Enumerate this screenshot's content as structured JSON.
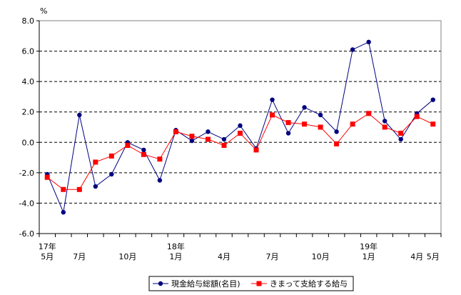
{
  "chart_data": {
    "type": "line",
    "title": "",
    "xlabel": "",
    "ylabel": "",
    "y_unit": "%",
    "ylim": [
      -6.0,
      8.0
    ],
    "y_ticks": [
      "8.0",
      "6.0",
      "4.0",
      "2.0",
      "0.0",
      "-2.0",
      "-4.0",
      "-6.0"
    ],
    "y_tick_values": [
      8,
      6,
      4,
      2,
      0,
      -2,
      -4,
      -6
    ],
    "grid": true,
    "legend_position": "bottom",
    "x_ticks": [
      {
        "index": 0,
        "year": "17年",
        "month": "5月"
      },
      {
        "index": 2,
        "year": "",
        "month": "7月"
      },
      {
        "index": 5,
        "year": "",
        "month": "10月"
      },
      {
        "index": 8,
        "year": "18年",
        "month": "1月"
      },
      {
        "index": 11,
        "year": "",
        "month": "4月"
      },
      {
        "index": 14,
        "year": "",
        "month": "7月"
      },
      {
        "index": 17,
        "year": "",
        "month": "10月"
      },
      {
        "index": 20,
        "year": "19年",
        "month": "1月"
      },
      {
        "index": 23,
        "year": "",
        "month": "4月"
      },
      {
        "index": 24,
        "year": "",
        "month": "5月"
      }
    ],
    "series": [
      {
        "name": "現金給与総額(名目)",
        "color": "#000080",
        "marker": "circle",
        "values": [
          -2.1,
          -4.6,
          1.8,
          -2.9,
          -2.1,
          0.0,
          -0.5,
          -2.5,
          0.8,
          0.1,
          0.7,
          0.2,
          1.1,
          -0.4,
          2.8,
          0.6,
          2.3,
          1.8,
          0.7,
          6.1,
          6.6,
          1.4,
          0.2,
          1.9,
          2.8
        ]
      },
      {
        "name": "きまって支給する給与",
        "color": "#ff0000",
        "marker": "square",
        "values": [
          -2.3,
          -3.1,
          -3.1,
          -1.3,
          -0.9,
          -0.2,
          -0.8,
          -1.1,
          0.7,
          0.4,
          0.2,
          -0.2,
          0.6,
          -0.5,
          1.8,
          1.3,
          1.2,
          1.0,
          -0.1,
          1.2,
          1.9,
          1.0,
          0.6,
          1.7,
          1.2
        ]
      }
    ]
  }
}
